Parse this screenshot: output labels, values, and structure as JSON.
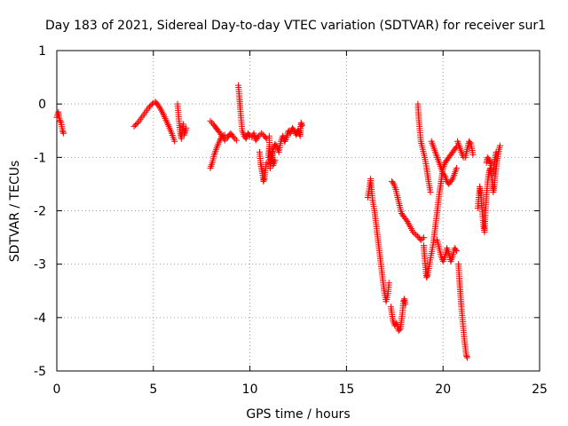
{
  "chart_data": {
    "type": "scatter",
    "title": "Day 183 of 2021, Sidereal Day-to-day VTEC variation (SDTVAR) for receiver sur1",
    "xlabel": "GPS time / hours",
    "ylabel": "SDTVAR / TECUs",
    "xlim": [
      0,
      25
    ],
    "ylim": [
      -5,
      1
    ],
    "xticks": [
      "0",
      "5",
      "10",
      "15",
      "20",
      "25"
    ],
    "yticks": [
      "1",
      "0",
      "-1",
      "-2",
      "-3",
      "-4",
      "-5"
    ],
    "grid": true,
    "marker": "+",
    "marker_color": "#ff0000",
    "series": [
      {
        "name": "SDTVAR",
        "segments": [
          [
            [
              0.0,
              -0.25
            ],
            [
              0.08,
              -0.15
            ],
            [
              0.15,
              -0.3
            ],
            [
              0.22,
              -0.35
            ],
            [
              0.3,
              -0.5
            ],
            [
              0.35,
              -0.55
            ]
          ],
          [
            [
              4.0,
              -0.42
            ],
            [
              4.2,
              -0.35
            ],
            [
              4.4,
              -0.25
            ],
            [
              4.6,
              -0.15
            ],
            [
              4.8,
              -0.05
            ],
            [
              5.0,
              0.02
            ],
            [
              5.1,
              0.04
            ],
            [
              5.2,
              0.0
            ],
            [
              5.35,
              -0.08
            ],
            [
              5.5,
              -0.18
            ],
            [
              5.65,
              -0.3
            ],
            [
              5.8,
              -0.42
            ],
            [
              5.95,
              -0.55
            ],
            [
              6.1,
              -0.7
            ]
          ],
          [
            [
              6.25,
              0.0
            ],
            [
              6.3,
              -0.2
            ],
            [
              6.35,
              -0.4
            ],
            [
              6.4,
              -0.55
            ],
            [
              6.45,
              -0.65
            ],
            [
              6.5,
              -0.5
            ],
            [
              6.55,
              -0.38
            ],
            [
              6.6,
              -0.58
            ],
            [
              6.7,
              -0.45
            ]
          ],
          [
            [
              7.95,
              -1.2
            ],
            [
              8.05,
              -1.1
            ],
            [
              8.15,
              -0.95
            ],
            [
              8.25,
              -0.85
            ],
            [
              8.35,
              -0.75
            ],
            [
              8.45,
              -0.68
            ],
            [
              8.55,
              -0.6
            ],
            [
              8.7,
              -0.58
            ]
          ],
          [
            [
              7.95,
              -0.32
            ],
            [
              8.1,
              -0.38
            ],
            [
              8.25,
              -0.45
            ],
            [
              8.4,
              -0.52
            ],
            [
              8.55,
              -0.6
            ],
            [
              8.7,
              -0.68
            ],
            [
              8.85,
              -0.62
            ],
            [
              9.0,
              -0.55
            ],
            [
              9.15,
              -0.62
            ],
            [
              9.3,
              -0.68
            ]
          ],
          [
            [
              9.4,
              0.35
            ],
            [
              9.45,
              0.15
            ],
            [
              9.5,
              -0.1
            ],
            [
              9.55,
              -0.3
            ],
            [
              9.6,
              -0.5
            ],
            [
              9.7,
              -0.6
            ],
            [
              9.8,
              -0.65
            ],
            [
              9.9,
              -0.55
            ],
            [
              10.0,
              -0.6
            ],
            [
              10.1,
              -0.62
            ],
            [
              10.2,
              -0.55
            ],
            [
              10.3,
              -0.68
            ],
            [
              10.45,
              -0.6
            ],
            [
              10.6,
              -0.55
            ],
            [
              10.75,
              -0.6
            ],
            [
              10.85,
              -0.65
            ]
          ],
          [
            [
              10.5,
              -0.9
            ],
            [
              10.55,
              -1.1
            ],
            [
              10.6,
              -1.2
            ],
            [
              10.65,
              -1.3
            ],
            [
              10.7,
              -1.45
            ],
            [
              10.75,
              -1.4
            ],
            [
              10.8,
              -1.25
            ],
            [
              10.85,
              -1.1
            ]
          ],
          [
            [
              10.95,
              -1.0
            ],
            [
              11.0,
              -0.8
            ],
            [
              11.05,
              -0.95
            ],
            [
              11.1,
              -1.1
            ],
            [
              11.15,
              -1.0
            ],
            [
              11.2,
              -0.85
            ],
            [
              11.3,
              -0.75
            ],
            [
              11.4,
              -0.8
            ],
            [
              11.5,
              -0.9
            ],
            [
              11.6,
              -0.7
            ],
            [
              11.7,
              -0.6
            ],
            [
              11.8,
              -0.7
            ]
          ],
          [
            [
              11.0,
              -0.6
            ],
            [
              11.05,
              -1.2
            ],
            [
              11.1,
              -1.0
            ],
            [
              11.15,
              -0.9
            ],
            [
              11.2,
              -1.15
            ],
            [
              11.3,
              -1.05
            ]
          ],
          [
            [
              11.8,
              -0.7
            ],
            [
              11.9,
              -0.62
            ],
            [
              12.0,
              -0.5
            ],
            [
              12.1,
              -0.55
            ],
            [
              12.2,
              -0.45
            ],
            [
              12.3,
              -0.5
            ],
            [
              12.4,
              -0.58
            ],
            [
              12.5,
              -0.48
            ],
            [
              12.6,
              -0.6
            ],
            [
              12.65,
              -0.35
            ],
            [
              12.7,
              -0.4
            ]
          ],
          [
            [
              16.1,
              -1.75
            ],
            [
              16.2,
              -1.55
            ],
            [
              16.25,
              -1.4
            ],
            [
              16.3,
              -1.6
            ],
            [
              16.35,
              -1.8
            ],
            [
              16.45,
              -2.0
            ],
            [
              16.55,
              -2.3
            ],
            [
              16.65,
              -2.6
            ],
            [
              16.75,
              -2.9
            ],
            [
              16.85,
              -3.2
            ],
            [
              16.95,
              -3.5
            ],
            [
              17.05,
              -3.7
            ],
            [
              17.15,
              -3.55
            ],
            [
              17.2,
              -3.35
            ]
          ],
          [
            [
              17.3,
              -3.8
            ],
            [
              17.4,
              -4.05
            ],
            [
              17.5,
              -4.15
            ],
            [
              17.6,
              -4.1
            ],
            [
              17.7,
              -4.25
            ],
            [
              17.8,
              -4.2
            ],
            [
              17.9,
              -3.9
            ],
            [
              17.95,
              -3.7
            ],
            [
              18.0,
              -3.65
            ],
            [
              18.05,
              -3.75
            ]
          ],
          [
            [
              17.35,
              -1.45
            ],
            [
              17.45,
              -1.5
            ],
            [
              17.55,
              -1.6
            ],
            [
              17.65,
              -1.75
            ],
            [
              17.75,
              -1.9
            ],
            [
              17.85,
              -2.05
            ],
            [
              17.95,
              -2.1
            ],
            [
              18.05,
              -2.15
            ],
            [
              18.15,
              -2.2
            ],
            [
              18.3,
              -2.3
            ],
            [
              18.45,
              -2.4
            ],
            [
              18.6,
              -2.45
            ],
            [
              18.75,
              -2.5
            ],
            [
              18.85,
              -2.55
            ],
            [
              19.0,
              -2.5
            ]
          ],
          [
            [
              18.7,
              0.0
            ],
            [
              18.75,
              -0.3
            ],
            [
              18.8,
              -0.5
            ],
            [
              18.85,
              -0.7
            ],
            [
              18.95,
              -0.85
            ],
            [
              19.05,
              -1.0
            ],
            [
              19.15,
              -1.2
            ],
            [
              19.25,
              -1.45
            ],
            [
              19.35,
              -1.65
            ]
          ],
          [
            [
              19.0,
              -2.65
            ],
            [
              19.05,
              -2.9
            ],
            [
              19.1,
              -3.1
            ],
            [
              19.15,
              -3.25
            ],
            [
              19.2,
              -3.2
            ],
            [
              19.3,
              -3.0
            ],
            [
              19.4,
              -2.8
            ],
            [
              19.5,
              -2.6
            ],
            [
              19.6,
              -2.3
            ],
            [
              19.7,
              -2.0
            ],
            [
              19.8,
              -1.7
            ],
            [
              19.9,
              -1.45
            ],
            [
              20.0,
              -1.2
            ],
            [
              20.1,
              -1.1
            ],
            [
              20.2,
              -1.05
            ],
            [
              20.3,
              -1.0
            ],
            [
              20.4,
              -0.95
            ],
            [
              20.5,
              -0.9
            ],
            [
              20.6,
              -0.85
            ],
            [
              20.7,
              -0.8
            ]
          ],
          [
            [
              19.4,
              -0.7
            ],
            [
              19.5,
              -0.8
            ],
            [
              19.6,
              -0.9
            ],
            [
              19.7,
              -1.0
            ],
            [
              19.8,
              -1.1
            ],
            [
              19.9,
              -1.2
            ],
            [
              20.0,
              -1.3
            ],
            [
              20.1,
              -1.35
            ],
            [
              20.2,
              -1.45
            ],
            [
              20.3,
              -1.5
            ],
            [
              20.4,
              -1.45
            ],
            [
              20.5,
              -1.4
            ],
            [
              20.6,
              -1.3
            ],
            [
              20.7,
              -1.2
            ]
          ],
          [
            [
              19.7,
              -2.55
            ],
            [
              19.8,
              -2.7
            ],
            [
              19.9,
              -2.85
            ],
            [
              20.0,
              -2.95
            ],
            [
              20.1,
              -2.85
            ],
            [
              20.2,
              -2.7
            ],
            [
              20.3,
              -2.8
            ],
            [
              20.4,
              -2.95
            ],
            [
              20.5,
              -2.85
            ],
            [
              20.6,
              -2.7
            ],
            [
              20.7,
              -2.75
            ]
          ],
          [
            [
              20.8,
              -3.0
            ],
            [
              20.85,
              -3.3
            ],
            [
              20.9,
              -3.55
            ],
            [
              20.95,
              -3.8
            ],
            [
              21.0,
              -4.0
            ],
            [
              21.05,
              -4.2
            ],
            [
              21.1,
              -4.4
            ],
            [
              21.15,
              -4.55
            ],
            [
              21.2,
              -4.7
            ],
            [
              21.25,
              -4.75
            ]
          ],
          [
            [
              20.75,
              -0.7
            ],
            [
              20.85,
              -0.8
            ],
            [
              20.95,
              -0.9
            ],
            [
              21.05,
              -1.0
            ],
            [
              21.15,
              -1.0
            ],
            [
              21.25,
              -0.85
            ],
            [
              21.35,
              -0.7
            ],
            [
              21.45,
              -0.75
            ],
            [
              21.55,
              -0.95
            ]
          ],
          [
            [
              21.8,
              -1.95
            ],
            [
              21.85,
              -1.75
            ],
            [
              21.9,
              -1.55
            ],
            [
              21.95,
              -1.65
            ],
            [
              22.0,
              -1.9
            ],
            [
              22.05,
              -2.1
            ],
            [
              22.1,
              -2.3
            ],
            [
              22.15,
              -2.4
            ],
            [
              22.2,
              -2.0
            ],
            [
              22.25,
              -1.7
            ],
            [
              22.3,
              -1.5
            ],
            [
              22.35,
              -1.35
            ],
            [
              22.4,
              -1.25
            ],
            [
              22.45,
              -1.2
            ],
            [
              22.5,
              -1.3
            ],
            [
              22.55,
              -1.5
            ],
            [
              22.6,
              -1.65
            ],
            [
              22.65,
              -1.55
            ],
            [
              22.7,
              -1.35
            ],
            [
              22.75,
              -1.2
            ],
            [
              22.8,
              -1.05
            ],
            [
              22.85,
              -0.95
            ],
            [
              22.9,
              -0.85
            ],
            [
              22.95,
              -0.78
            ]
          ],
          [
            [
              22.25,
              -1.1
            ],
            [
              22.3,
              -1.0
            ],
            [
              22.4,
              -1.05
            ],
            [
              22.5,
              -1.15
            ]
          ],
          [
            [
              22.6,
              -1.3
            ],
            [
              22.65,
              -1.1
            ],
            [
              22.7,
              -1.0
            ],
            [
              22.75,
              -0.9
            ]
          ]
        ]
      }
    ]
  }
}
